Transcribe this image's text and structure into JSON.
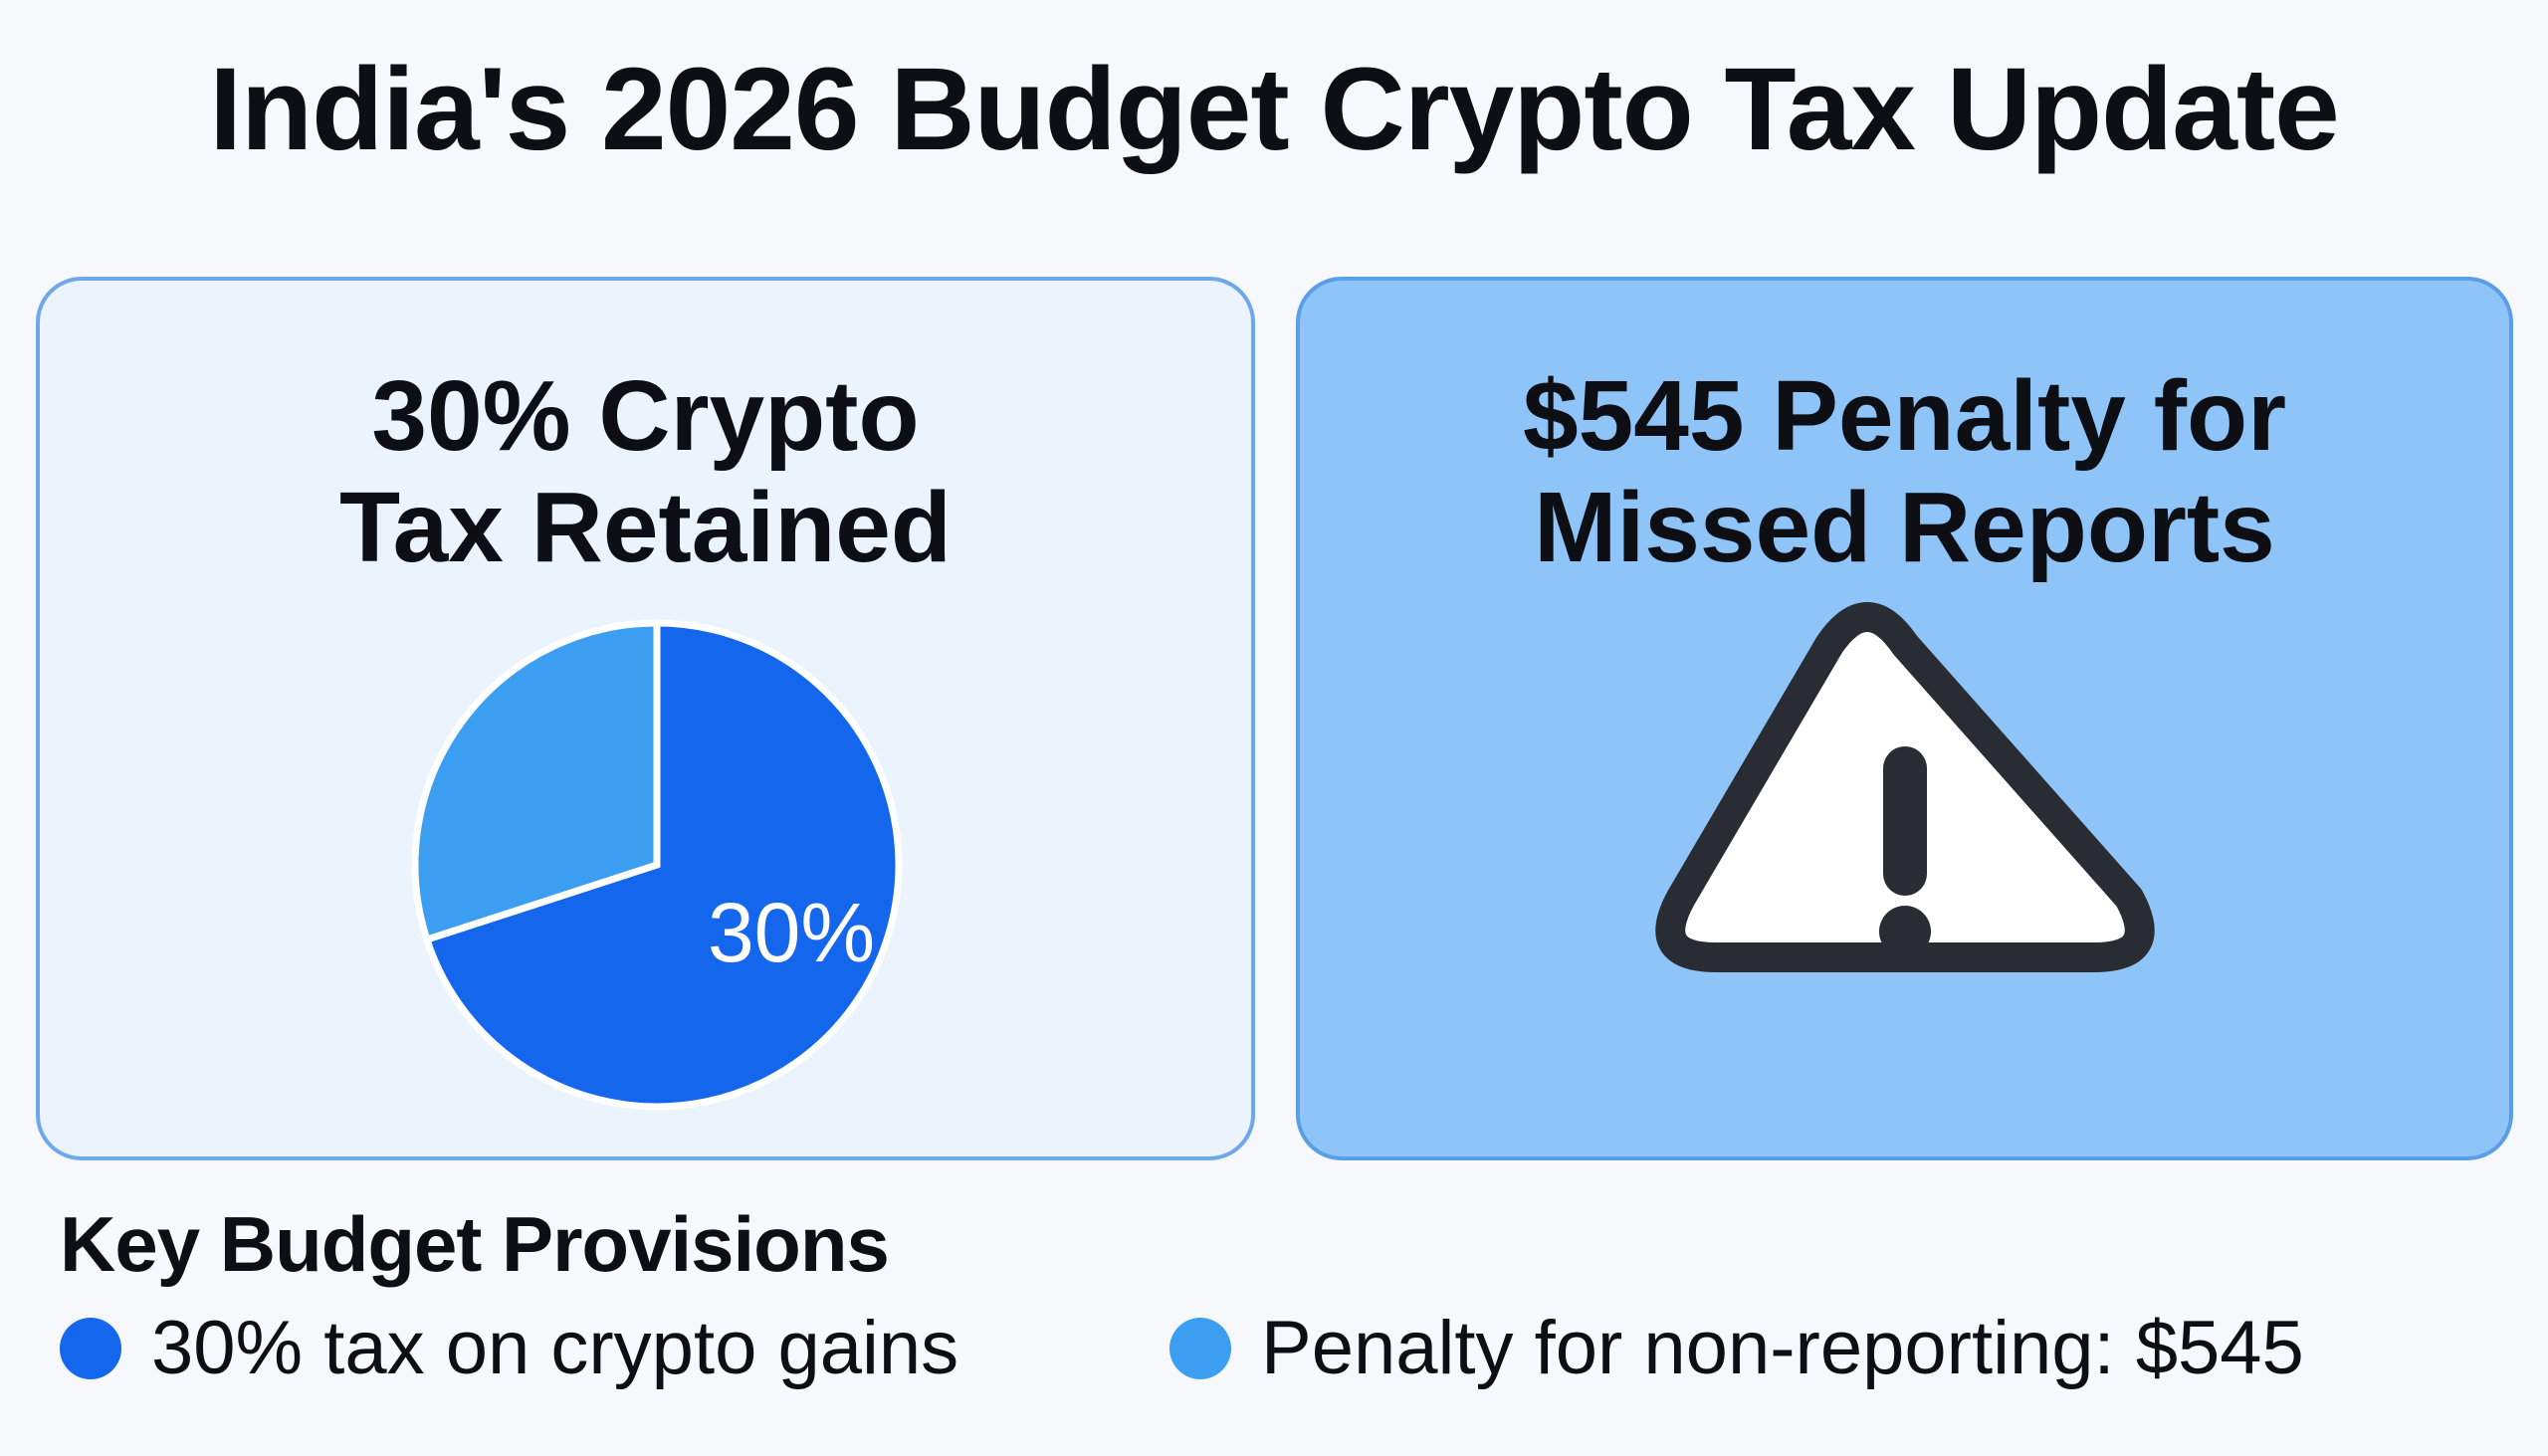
{
  "title": "India's 2026 Budget Crypto Tax Update",
  "left_card": {
    "heading_line1": "30% Crypto",
    "heading_line2": "Tax Retained"
  },
  "right_card": {
    "heading_line1": "$545 Penalty for",
    "heading_line2": "Missed Reports",
    "icon": "warning-triangle-icon"
  },
  "chart_data": {
    "type": "pie",
    "slices": [
      {
        "value": 70,
        "color": "#1466ec"
      },
      {
        "value": 30,
        "color": "#3b9ef0"
      }
    ],
    "data_label": "30%"
  },
  "provisions": {
    "title": "Key Budget Provisions",
    "items": [
      {
        "label": "30% tax on crypto gains",
        "color": "#1466ec"
      },
      {
        "label": "Penalty for non-reporting: $545",
        "color": "#3b9ef0"
      }
    ]
  },
  "colors": {
    "background": "#f7f8fb",
    "left_card_bg": "#ebf3fd",
    "right_card_bg": "#8ec4f7",
    "accent_dark": "#1466ec",
    "accent_light": "#3b9ef0"
  }
}
